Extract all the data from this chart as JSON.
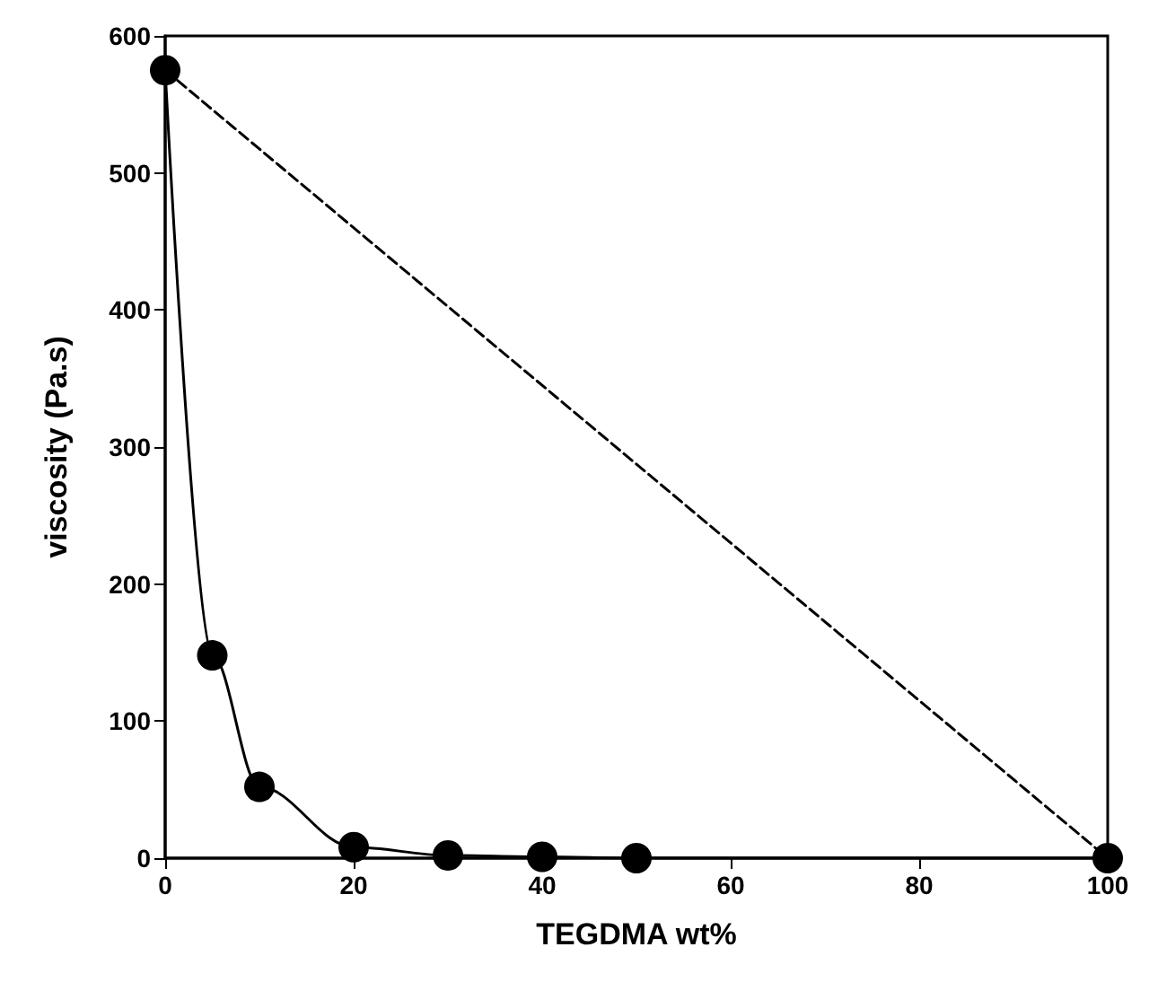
{
  "chart_data": {
    "type": "line",
    "xlabel": "TEGDMA wt%",
    "ylabel": "viscosity (Pa.s)",
    "xlim": [
      0,
      100
    ],
    "xticks": [
      0,
      20,
      40,
      60,
      80,
      100
    ],
    "ylim": [
      0,
      600
    ],
    "yticks": [
      0,
      100,
      200,
      300,
      400,
      500,
      600
    ],
    "grid": false,
    "series": [
      {
        "color": "#000000",
        "marker": "circle",
        "line_style": "solid",
        "x": [
          0,
          5,
          10,
          20,
          30,
          40,
          50,
          100
        ],
        "values": [
          575,
          148,
          52,
          8,
          2,
          1,
          0,
          0
        ]
      },
      {
        "color": "#000000",
        "marker": "none",
        "line_style": "dashed",
        "x": [
          0,
          100
        ],
        "values": [
          575,
          0
        ]
      }
    ]
  }
}
